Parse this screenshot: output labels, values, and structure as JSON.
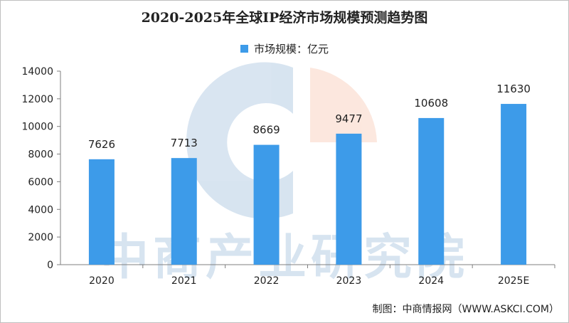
{
  "chart_data": {
    "type": "bar",
    "title": "2020-2025年全球IP经济市场规模预测趋势图",
    "categories": [
      "2020",
      "2021",
      "2022",
      "2023",
      "2024",
      "2025E"
    ],
    "series": [
      {
        "name": "市场规模：亿元",
        "values": [
          7626,
          7713,
          8669,
          9477,
          10608,
          11630
        ],
        "color": "#3d9be9"
      }
    ],
    "y_ticks": [
      "0",
      "2000",
      "4000",
      "6000",
      "8000",
      "10000",
      "12000",
      "14000"
    ],
    "ylim": [
      0,
      14000
    ],
    "grid": false,
    "legend_position": "top-center"
  },
  "watermark": {
    "text": "中商产业研究院"
  },
  "source_text": "制图：中商情报网（WWW.ASKCI.COM）"
}
